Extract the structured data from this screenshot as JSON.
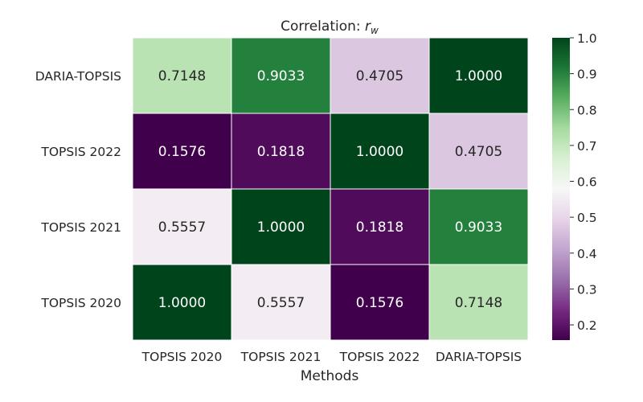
{
  "chart_data": {
    "type": "heatmap",
    "title": "Correlation: ",
    "title_symbol": "r",
    "title_subscript": "w",
    "xlabel": "Methods",
    "ylabel": "",
    "columns": [
      "TOPSIS 2020",
      "TOPSIS 2021",
      "TOPSIS 2022",
      "DARIA-TOPSIS"
    ],
    "rows": [
      "DARIA-TOPSIS",
      "TOPSIS 2022",
      "TOPSIS 2021",
      "TOPSIS 2020"
    ],
    "values": [
      [
        0.7148,
        0.9033,
        0.4705,
        1.0
      ],
      [
        0.1576,
        0.1818,
        1.0,
        0.4705
      ],
      [
        0.5557,
        1.0,
        0.1818,
        0.9033
      ],
      [
        1.0,
        0.5557,
        0.1576,
        0.7148
      ]
    ],
    "cell_labels": [
      [
        "0.7148",
        "0.9033",
        "0.4705",
        "1.0000"
      ],
      [
        "0.1576",
        "0.1818",
        "1.0000",
        "0.4705"
      ],
      [
        "0.5557",
        "1.0000",
        "0.1818",
        "0.9033"
      ],
      [
        "1.0000",
        "0.5557",
        "0.1576",
        "0.7148"
      ]
    ],
    "colorbar": {
      "colormap": "PRGn",
      "range": [
        0.1576,
        1.0
      ],
      "ticks": [
        0.2,
        0.3,
        0.4,
        0.5,
        0.6,
        0.7,
        0.8,
        0.9,
        1.0
      ],
      "tick_labels": [
        "0.2",
        "0.3",
        "0.4",
        "0.5",
        "0.6",
        "0.7",
        "0.8",
        "0.9",
        "1.0"
      ],
      "colors": [
        "#40004b",
        "#762a83",
        "#9970ab",
        "#c2a5cf",
        "#e7d4e8",
        "#f7f7f7",
        "#d9f0d3",
        "#a6dba0",
        "#5aae61",
        "#1b7837",
        "#00441b"
      ]
    },
    "grid": false,
    "legend": "colorbar-right"
  }
}
